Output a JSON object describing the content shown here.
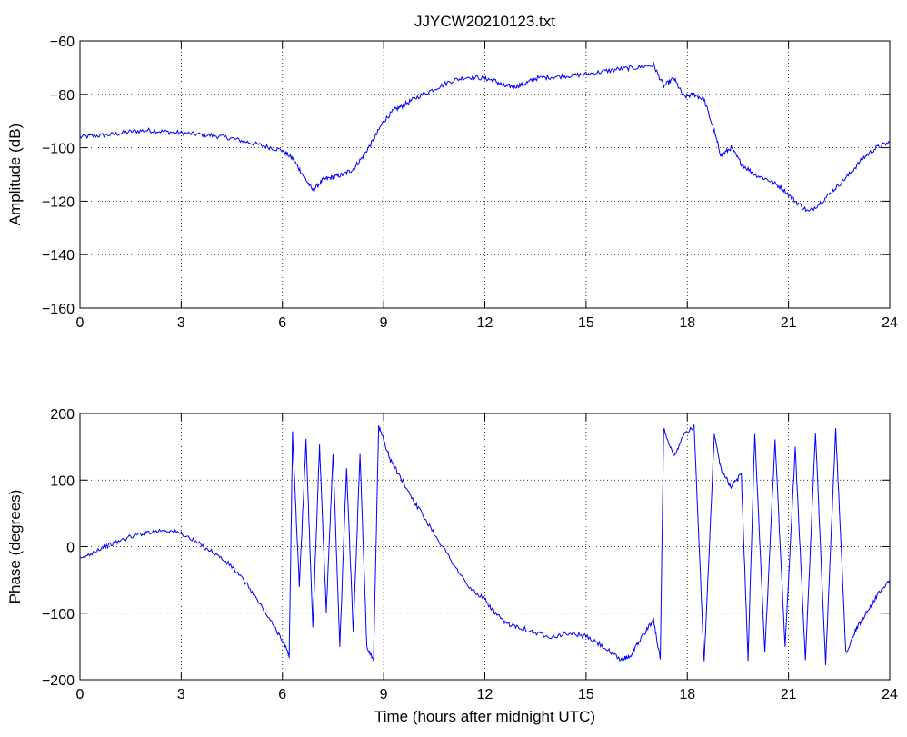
{
  "chart_data": [
    {
      "type": "line",
      "title": "JJYCW20210123.txt",
      "xlabel": "",
      "ylabel": "Amplitude (dB)",
      "xlim": [
        0,
        24
      ],
      "ylim": [
        -160,
        -60
      ],
      "xticks": [
        0,
        3,
        6,
        9,
        12,
        15,
        18,
        21,
        24
      ],
      "yticks": [
        -60,
        -80,
        -100,
        -120,
        -140,
        -160
      ],
      "yticklabels": [
        "−60",
        "−80",
        "−100",
        "−120",
        "−140",
        "−160"
      ],
      "grid": true,
      "color": "#0000ff",
      "series": [
        {
          "x": [
            0,
            0.5,
            1,
            1.5,
            2,
            2.5,
            3,
            3.5,
            4,
            4.5,
            5,
            5.5,
            6,
            6.3,
            6.6,
            6.9,
            7.2,
            7.5,
            7.8,
            8.1,
            8.4,
            8.7,
            9,
            9.3,
            9.6,
            10,
            10.5,
            11,
            11.5,
            12,
            12.3,
            12.6,
            12.9,
            13.2,
            13.5,
            14,
            14.5,
            15,
            15.5,
            16,
            16.5,
            17,
            17.3,
            17.6,
            17.9,
            18.2,
            18.5,
            18.8,
            19,
            19.3,
            19.6,
            20,
            20.4,
            20.8,
            21.2,
            21.6,
            22,
            22.4,
            22.8,
            23.2,
            23.6,
            24
          ],
          "values": [
            -96,
            -95.5,
            -95,
            -94,
            -93.5,
            -94,
            -94.5,
            -95,
            -95.5,
            -96.5,
            -98,
            -99.5,
            -101,
            -104,
            -110,
            -116,
            -112,
            -111,
            -110,
            -108,
            -103,
            -97,
            -90,
            -86,
            -84,
            -81,
            -78,
            -75,
            -73.5,
            -74,
            -75,
            -77,
            -77,
            -76,
            -74,
            -73.5,
            -73,
            -72.5,
            -71.5,
            -70.5,
            -70,
            -69,
            -77,
            -74,
            -81,
            -80,
            -82,
            -94,
            -103,
            -100,
            -106,
            -110,
            -112,
            -115,
            -120,
            -124,
            -120,
            -115,
            -110,
            -104,
            -100,
            -98
          ]
        }
      ]
    },
    {
      "type": "line",
      "title": "",
      "xlabel": "Time (hours after midnight UTC)",
      "ylabel": "Phase (degrees)",
      "xlim": [
        0,
        24
      ],
      "ylim": [
        -200,
        200
      ],
      "xticks": [
        0,
        3,
        6,
        9,
        12,
        15,
        18,
        21,
        24
      ],
      "yticks": [
        200,
        100,
        0,
        -100,
        -200
      ],
      "yticklabels": [
        "200",
        "100",
        "0",
        "−100",
        "−200"
      ],
      "grid": true,
      "color": "#0000ff",
      "series": [
        {
          "x": [
            0,
            0.5,
            1,
            1.5,
            2,
            2.5,
            3,
            3.5,
            4,
            4.5,
            5,
            5.5,
            6,
            6.2,
            6.3,
            6.5,
            6.7,
            6.9,
            7.1,
            7.3,
            7.5,
            7.7,
            7.9,
            8.1,
            8.3,
            8.5,
            8.7,
            8.85,
            8.9,
            9.2,
            9.6,
            10,
            10.5,
            11,
            11.5,
            12,
            12.3,
            12.6,
            13,
            13.5,
            14,
            14.5,
            15,
            15.5,
            16,
            16.3,
            16.6,
            17,
            17.2,
            17.3,
            17.6,
            17.9,
            18.2,
            18.5,
            18.8,
            19,
            19.3,
            19.6,
            19.8,
            20,
            20.3,
            20.6,
            20.9,
            21.2,
            21.5,
            21.8,
            22.1,
            22.4,
            22.7,
            23,
            23.3,
            23.6,
            24
          ],
          "values": [
            -20,
            -5,
            5,
            15,
            22,
            25,
            20,
            5,
            -10,
            -30,
            -60,
            -100,
            -140,
            -165,
            170,
            -60,
            160,
            -120,
            150,
            -100,
            140,
            -150,
            120,
            -130,
            140,
            -150,
            -170,
            180,
            175,
            130,
            95,
            60,
            20,
            -20,
            -60,
            -80,
            -100,
            -115,
            -120,
            -130,
            -135,
            -130,
            -135,
            -150,
            -170,
            -165,
            -140,
            -110,
            -170,
            178,
            135,
            170,
            180,
            -175,
            170,
            115,
            90,
            110,
            -170,
            170,
            -160,
            160,
            -150,
            150,
            -170,
            170,
            -175,
            175,
            -160,
            -125,
            -100,
            -75,
            -50
          ]
        }
      ]
    }
  ]
}
